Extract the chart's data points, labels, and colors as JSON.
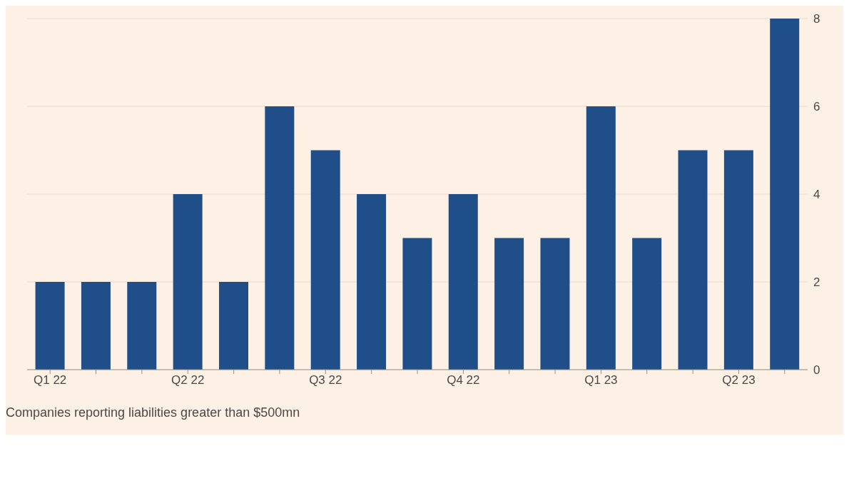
{
  "chart_data": {
    "type": "bar",
    "categories": [
      "Q1 22",
      null,
      null,
      "Q2 22",
      null,
      null,
      "Q3 22",
      null,
      null,
      "Q4 22",
      null,
      null,
      "Q1 23",
      null,
      null,
      "Q2 23",
      null
    ],
    "values": [
      2,
      2,
      2,
      4,
      2,
      6,
      5,
      4,
      3,
      4,
      3,
      3,
      6,
      3,
      5,
      5,
      8
    ],
    "color": "#1f4e89",
    "ylim": [
      0,
      8
    ],
    "yticks": [
      0,
      2,
      4,
      6,
      8
    ],
    "grid": "y",
    "annotations": [
      "Companies reporting liabilities greater than $500mn"
    ]
  }
}
